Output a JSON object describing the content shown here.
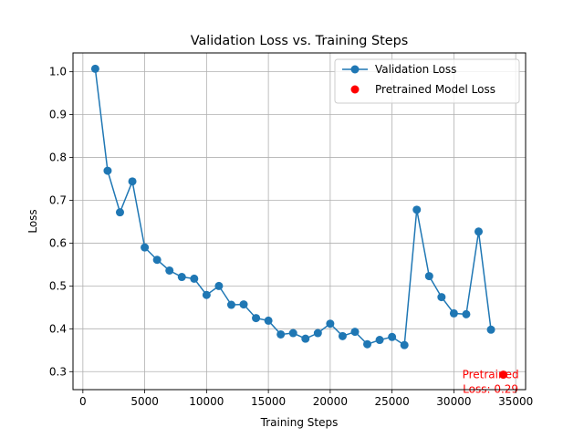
{
  "chart_data": {
    "type": "line",
    "title": "Validation Loss vs. Training Steps",
    "xlabel": "Training Steps",
    "ylabel": "Loss",
    "xlim": [
      -800,
      35800
    ],
    "ylim": [
      0.258,
      1.044
    ],
    "xticks": [
      0,
      5000,
      10000,
      15000,
      20000,
      25000,
      30000,
      35000
    ],
    "xtick_labels": [
      "0",
      "5000",
      "10000",
      "15000",
      "20000",
      "25000",
      "30000",
      "35000"
    ],
    "yticks": [
      0.3,
      0.4,
      0.5,
      0.6,
      0.7,
      0.8,
      0.9,
      1.0
    ],
    "ytick_labels": [
      "0.3",
      "0.4",
      "0.5",
      "0.6",
      "0.7",
      "0.8",
      "0.9",
      "1.0"
    ],
    "grid": true,
    "legend_position": "top-right",
    "series": [
      {
        "name": "Validation Loss",
        "type": "line",
        "marker": "circle",
        "color": "#1f77b4",
        "x": [
          1000,
          2000,
          3000,
          4000,
          5000,
          6000,
          7000,
          8000,
          9000,
          10000,
          11000,
          12000,
          13000,
          14000,
          15000,
          16000,
          17000,
          18000,
          19000,
          20000,
          21000,
          22000,
          23000,
          24000,
          25000,
          26000,
          27000,
          28000,
          29000,
          30000,
          31000,
          32000,
          33000
        ],
        "y": [
          1.007,
          0.769,
          0.672,
          0.744,
          0.59,
          0.561,
          0.536,
          0.521,
          0.517,
          0.479,
          0.5,
          0.456,
          0.457,
          0.425,
          0.419,
          0.387,
          0.39,
          0.377,
          0.39,
          0.412,
          0.383,
          0.393,
          0.364,
          0.374,
          0.381,
          0.362,
          0.678,
          0.523,
          0.474,
          0.436,
          0.434,
          0.627,
          0.398
        ]
      },
      {
        "name": "Pretrained Model Loss",
        "type": "scatter",
        "marker": "circle",
        "color": "#ff0000",
        "x": [
          34000
        ],
        "y": [
          0.293
        ]
      }
    ],
    "annotations": [
      {
        "text_lines": [
          "Pretrained",
          "Loss: 0.29"
        ],
        "x": 34000,
        "y": 0.293,
        "color": "#ff0000"
      }
    ]
  }
}
